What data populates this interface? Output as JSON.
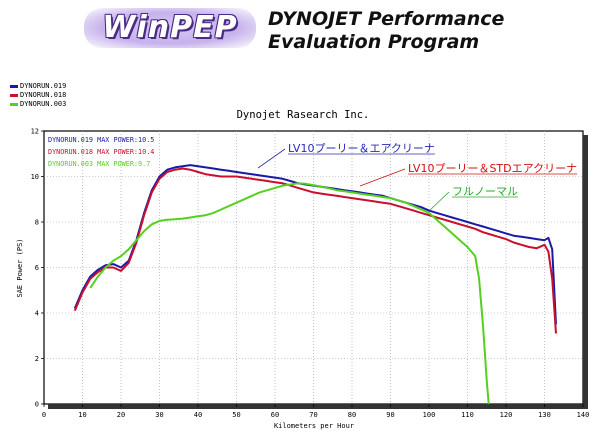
{
  "header": {
    "logo_text": "WinPEP",
    "title_line1": "DYNOJET Performance",
    "title_line2": "Evaluation Program"
  },
  "legend_top": [
    {
      "name": "DYNORUN.019",
      "color": "#1a1aa8"
    },
    {
      "name": "DYNORUN.018",
      "color": "#c8102e"
    },
    {
      "name": "DYNORUN.003",
      "color": "#55d020"
    }
  ],
  "chart_data": {
    "type": "line",
    "title": "Dynojet Rasearch Inc.",
    "xlabel": "Kilometers per Hour",
    "ylabel": "SAE Power (PS)",
    "xlim": [
      0,
      140
    ],
    "ylim": [
      0,
      12
    ],
    "xticks": [
      0,
      10,
      20,
      30,
      40,
      50,
      60,
      70,
      80,
      90,
      100,
      110,
      120,
      130,
      140
    ],
    "yticks": [
      0,
      2,
      4,
      6,
      8,
      10,
      12
    ],
    "grid": true,
    "inner_legend": [
      {
        "text": "DYNORUN.019  MAX POWER:10.5",
        "color": "#1a1aa8"
      },
      {
        "text": "DYNORUN.018  MAX POWER:10.4",
        "color": "#c8102e"
      },
      {
        "text": "DYNORUN.003  MAX POWER:9.7",
        "color": "#55d020"
      }
    ],
    "annotations": [
      {
        "text": "LV10プーリー＆エアクリーナ",
        "color": "#2a2ab8",
        "series": "DYNORUN.019"
      },
      {
        "text": "LV10プーリー＆STDエアクリーナ",
        "color": "#d01010",
        "series": "DYNORUN.018"
      },
      {
        "text": "フルノーマル",
        "color": "#2aa82a",
        "series": "DYNORUN.003"
      }
    ],
    "series": [
      {
        "name": "DYNORUN.019",
        "color": "#1a1aa8",
        "points": [
          [
            8,
            4.2
          ],
          [
            10,
            5.0
          ],
          [
            12,
            5.6
          ],
          [
            14,
            5.9
          ],
          [
            16,
            6.1
          ],
          [
            18,
            6.15
          ],
          [
            20,
            6.0
          ],
          [
            22,
            6.3
          ],
          [
            24,
            7.2
          ],
          [
            26,
            8.4
          ],
          [
            28,
            9.4
          ],
          [
            30,
            10.0
          ],
          [
            32,
            10.3
          ],
          [
            34,
            10.4
          ],
          [
            36,
            10.45
          ],
          [
            38,
            10.5
          ],
          [
            40,
            10.45
          ],
          [
            42,
            10.4
          ],
          [
            44,
            10.35
          ],
          [
            46,
            10.3
          ],
          [
            48,
            10.25
          ],
          [
            50,
            10.2
          ],
          [
            52,
            10.15
          ],
          [
            54,
            10.1
          ],
          [
            56,
            10.05
          ],
          [
            58,
            10.0
          ],
          [
            60,
            9.95
          ],
          [
            62,
            9.9
          ],
          [
            64,
            9.8
          ],
          [
            66,
            9.7
          ],
          [
            68,
            9.65
          ],
          [
            70,
            9.6
          ],
          [
            72,
            9.55
          ],
          [
            74,
            9.5
          ],
          [
            76,
            9.45
          ],
          [
            78,
            9.4
          ],
          [
            80,
            9.35
          ],
          [
            82,
            9.3
          ],
          [
            84,
            9.25
          ],
          [
            86,
            9.2
          ],
          [
            88,
            9.15
          ],
          [
            90,
            9.05
          ],
          [
            92,
            8.95
          ],
          [
            94,
            8.85
          ],
          [
            96,
            8.75
          ],
          [
            98,
            8.65
          ],
          [
            100,
            8.5
          ],
          [
            102,
            8.4
          ],
          [
            104,
            8.3
          ],
          [
            106,
            8.2
          ],
          [
            108,
            8.1
          ],
          [
            110,
            8.0
          ],
          [
            112,
            7.9
          ],
          [
            114,
            7.8
          ],
          [
            116,
            7.7
          ],
          [
            118,
            7.6
          ],
          [
            120,
            7.5
          ],
          [
            122,
            7.4
          ],
          [
            124,
            7.35
          ],
          [
            126,
            7.3
          ],
          [
            128,
            7.25
          ],
          [
            130,
            7.2
          ],
          [
            131,
            7.3
          ],
          [
            132,
            6.8
          ],
          [
            133,
            3.5
          ]
        ]
      },
      {
        "name": "DYNORUN.018",
        "color": "#c8102e",
        "points": [
          [
            8,
            4.1
          ],
          [
            10,
            4.9
          ],
          [
            12,
            5.5
          ],
          [
            14,
            5.8
          ],
          [
            16,
            6.0
          ],
          [
            18,
            6.0
          ],
          [
            20,
            5.85
          ],
          [
            22,
            6.2
          ],
          [
            24,
            7.1
          ],
          [
            26,
            8.3
          ],
          [
            28,
            9.3
          ],
          [
            30,
            9.9
          ],
          [
            32,
            10.2
          ],
          [
            34,
            10.3
          ],
          [
            36,
            10.35
          ],
          [
            38,
            10.3
          ],
          [
            40,
            10.2
          ],
          [
            42,
            10.1
          ],
          [
            44,
            10.05
          ],
          [
            46,
            10.0
          ],
          [
            48,
            10.0
          ],
          [
            50,
            10.0
          ],
          [
            52,
            9.95
          ],
          [
            54,
            9.9
          ],
          [
            56,
            9.85
          ],
          [
            58,
            9.8
          ],
          [
            60,
            9.75
          ],
          [
            62,
            9.7
          ],
          [
            64,
            9.6
          ],
          [
            66,
            9.5
          ],
          [
            68,
            9.4
          ],
          [
            70,
            9.3
          ],
          [
            72,
            9.25
          ],
          [
            74,
            9.2
          ],
          [
            76,
            9.15
          ],
          [
            78,
            9.1
          ],
          [
            80,
            9.05
          ],
          [
            82,
            9.0
          ],
          [
            84,
            8.95
          ],
          [
            86,
            8.9
          ],
          [
            88,
            8.85
          ],
          [
            90,
            8.8
          ],
          [
            92,
            8.7
          ],
          [
            94,
            8.6
          ],
          [
            96,
            8.5
          ],
          [
            98,
            8.4
          ],
          [
            100,
            8.3
          ],
          [
            102,
            8.2
          ],
          [
            104,
            8.1
          ],
          [
            106,
            8.0
          ],
          [
            108,
            7.9
          ],
          [
            110,
            7.8
          ],
          [
            112,
            7.7
          ],
          [
            114,
            7.55
          ],
          [
            116,
            7.45
          ],
          [
            118,
            7.35
          ],
          [
            120,
            7.25
          ],
          [
            122,
            7.1
          ],
          [
            124,
            7.0
          ],
          [
            126,
            6.9
          ],
          [
            128,
            6.85
          ],
          [
            130,
            7.0
          ],
          [
            131,
            6.7
          ],
          [
            132,
            5.5
          ],
          [
            133,
            3.1
          ]
        ]
      },
      {
        "name": "DYNORUN.003",
        "color": "#55d020",
        "points": [
          [
            12,
            5.1
          ],
          [
            14,
            5.6
          ],
          [
            16,
            6.0
          ],
          [
            18,
            6.3
          ],
          [
            20,
            6.5
          ],
          [
            22,
            6.8
          ],
          [
            24,
            7.2
          ],
          [
            26,
            7.6
          ],
          [
            28,
            7.9
          ],
          [
            30,
            8.05
          ],
          [
            32,
            8.1
          ],
          [
            34,
            8.12
          ],
          [
            36,
            8.15
          ],
          [
            38,
            8.2
          ],
          [
            40,
            8.25
          ],
          [
            42,
            8.3
          ],
          [
            44,
            8.4
          ],
          [
            46,
            8.55
          ],
          [
            48,
            8.7
          ],
          [
            50,
            8.85
          ],
          [
            52,
            9.0
          ],
          [
            54,
            9.15
          ],
          [
            56,
            9.3
          ],
          [
            58,
            9.4
          ],
          [
            60,
            9.5
          ],
          [
            62,
            9.6
          ],
          [
            64,
            9.65
          ],
          [
            66,
            9.7
          ],
          [
            68,
            9.68
          ],
          [
            70,
            9.62
          ],
          [
            72,
            9.55
          ],
          [
            74,
            9.48
          ],
          [
            76,
            9.4
          ],
          [
            78,
            9.35
          ],
          [
            80,
            9.3
          ],
          [
            82,
            9.25
          ],
          [
            84,
            9.2
          ],
          [
            86,
            9.15
          ],
          [
            88,
            9.1
          ],
          [
            90,
            9.05
          ],
          [
            92,
            8.95
          ],
          [
            94,
            8.85
          ],
          [
            96,
            8.7
          ],
          [
            98,
            8.55
          ],
          [
            100,
            8.4
          ],
          [
            102,
            8.1
          ],
          [
            104,
            7.8
          ],
          [
            106,
            7.5
          ],
          [
            108,
            7.2
          ],
          [
            110,
            6.9
          ],
          [
            112,
            6.5
          ],
          [
            113,
            5.5
          ],
          [
            114,
            3.5
          ],
          [
            115,
            1.0
          ],
          [
            115.5,
            0.0
          ]
        ]
      }
    ]
  }
}
